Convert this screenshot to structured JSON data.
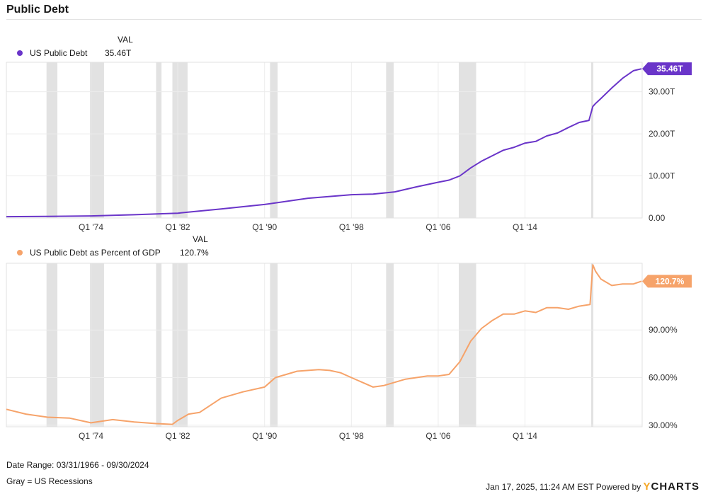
{
  "title": "Public Debt",
  "legend_header": "VAL",
  "date_range": "Date Range: 03/31/1966 - 09/30/2024",
  "recession_note": "Gray = US Recessions",
  "timestamp": "Jan 17, 2025, 11:24 AM EST Powered by",
  "brand": {
    "first": "Y",
    "rest": "CHARTS"
  },
  "colors": {
    "debt": "#6a35c9",
    "pct": "#f6a36a",
    "recession": "#e2e2e2",
    "grid": "#ececec"
  },
  "recessions": [
    [
      1969.9,
      1970.9
    ],
    [
      1973.9,
      1975.2
    ],
    [
      1980.0,
      1980.5
    ],
    [
      1981.5,
      1982.9
    ],
    [
      1990.5,
      1991.2
    ],
    [
      2001.2,
      2001.9
    ],
    [
      2007.9,
      2009.5
    ],
    [
      2020.1,
      2020.3
    ]
  ],
  "chart_data": [
    {
      "type": "line",
      "name": "US Public Debt",
      "value_label": "35.46T",
      "x_range": [
        1966.2,
        2024.8
      ],
      "ylim": [
        0,
        37
      ],
      "x_ticks": [
        {
          "x": 1974,
          "label": "Q1 '74"
        },
        {
          "x": 1982,
          "label": "Q1 '82"
        },
        {
          "x": 1990,
          "label": "Q1 '90"
        },
        {
          "x": 1998,
          "label": "Q1 '98"
        },
        {
          "x": 2006,
          "label": "Q1 '06"
        },
        {
          "x": 2014,
          "label": "Q1 '14"
        }
      ],
      "y_ticks": [
        {
          "y": 0,
          "label": "0.00"
        },
        {
          "y": 10,
          "label": "10.00T"
        },
        {
          "y": 20,
          "label": "20.00T"
        },
        {
          "y": 30,
          "label": "30.00T"
        }
      ],
      "units": "trillions USD",
      "x": [
        1966.2,
        1970,
        1974,
        1978,
        1982,
        1986,
        1990,
        1994,
        1998,
        2000,
        2002,
        2004,
        2006,
        2007,
        2008,
        2009,
        2010,
        2011,
        2012,
        2013,
        2014,
        2015,
        2016,
        2017,
        2018,
        2019,
        2019.9,
        2020.25,
        2020.5,
        2021,
        2022,
        2023,
        2024,
        2024.75
      ],
      "y": [
        0.32,
        0.38,
        0.48,
        0.77,
        1.14,
        2.13,
        3.21,
        4.69,
        5.53,
        5.67,
        6.2,
        7.4,
        8.5,
        9.0,
        10.0,
        11.9,
        13.5,
        14.8,
        16.1,
        16.8,
        17.8,
        18.2,
        19.5,
        20.2,
        21.5,
        22.7,
        23.2,
        26.5,
        27.2,
        28.4,
        30.9,
        33.2,
        35.0,
        35.46
      ]
    },
    {
      "type": "line",
      "name": "US Public Debt as Percent of GDP",
      "value_label": "120.7%",
      "x_range": [
        1966.2,
        2024.8
      ],
      "ylim": [
        29,
        132
      ],
      "x_ticks": [
        {
          "x": 1974,
          "label": "Q1 '74"
        },
        {
          "x": 1982,
          "label": "Q1 '82"
        },
        {
          "x": 1990,
          "label": "Q1 '90"
        },
        {
          "x": 1998,
          "label": "Q1 '98"
        },
        {
          "x": 2006,
          "label": "Q1 '06"
        },
        {
          "x": 2014,
          "label": "Q1 '14"
        }
      ],
      "y_ticks": [
        {
          "y": 30,
          "label": "30.00%"
        },
        {
          "y": 60,
          "label": "60.00%"
        },
        {
          "y": 90,
          "label": "90.00%"
        }
      ],
      "units": "percent",
      "x": [
        1966.2,
        1968,
        1970,
        1972,
        1974,
        1976,
        1978,
        1980,
        1981.5,
        1982,
        1983,
        1984,
        1986,
        1988,
        1990,
        1991,
        1992,
        1993,
        1995,
        1996,
        1997,
        1998,
        1999,
        2000,
        2001,
        2002,
        2003,
        2004,
        2005,
        2006,
        2007,
        2008,
        2009,
        2010,
        2011,
        2012,
        2013,
        2014,
        2015,
        2016,
        2017,
        2018,
        2019,
        2020,
        2020.25,
        2020.5,
        2021,
        2022,
        2023,
        2024,
        2024.75
      ],
      "y": [
        40,
        37,
        35,
        34.5,
        31.5,
        33.5,
        32,
        31,
        30.5,
        33,
        37,
        38,
        47,
        51,
        54,
        60,
        62,
        64,
        65,
        64.5,
        63,
        60,
        57,
        54,
        55,
        57,
        59,
        60,
        61,
        61,
        62,
        70,
        83,
        91,
        96,
        100,
        100,
        102,
        101,
        104,
        104,
        103,
        105,
        106,
        131,
        127,
        122,
        118,
        119,
        119,
        120.7
      ]
    }
  ]
}
